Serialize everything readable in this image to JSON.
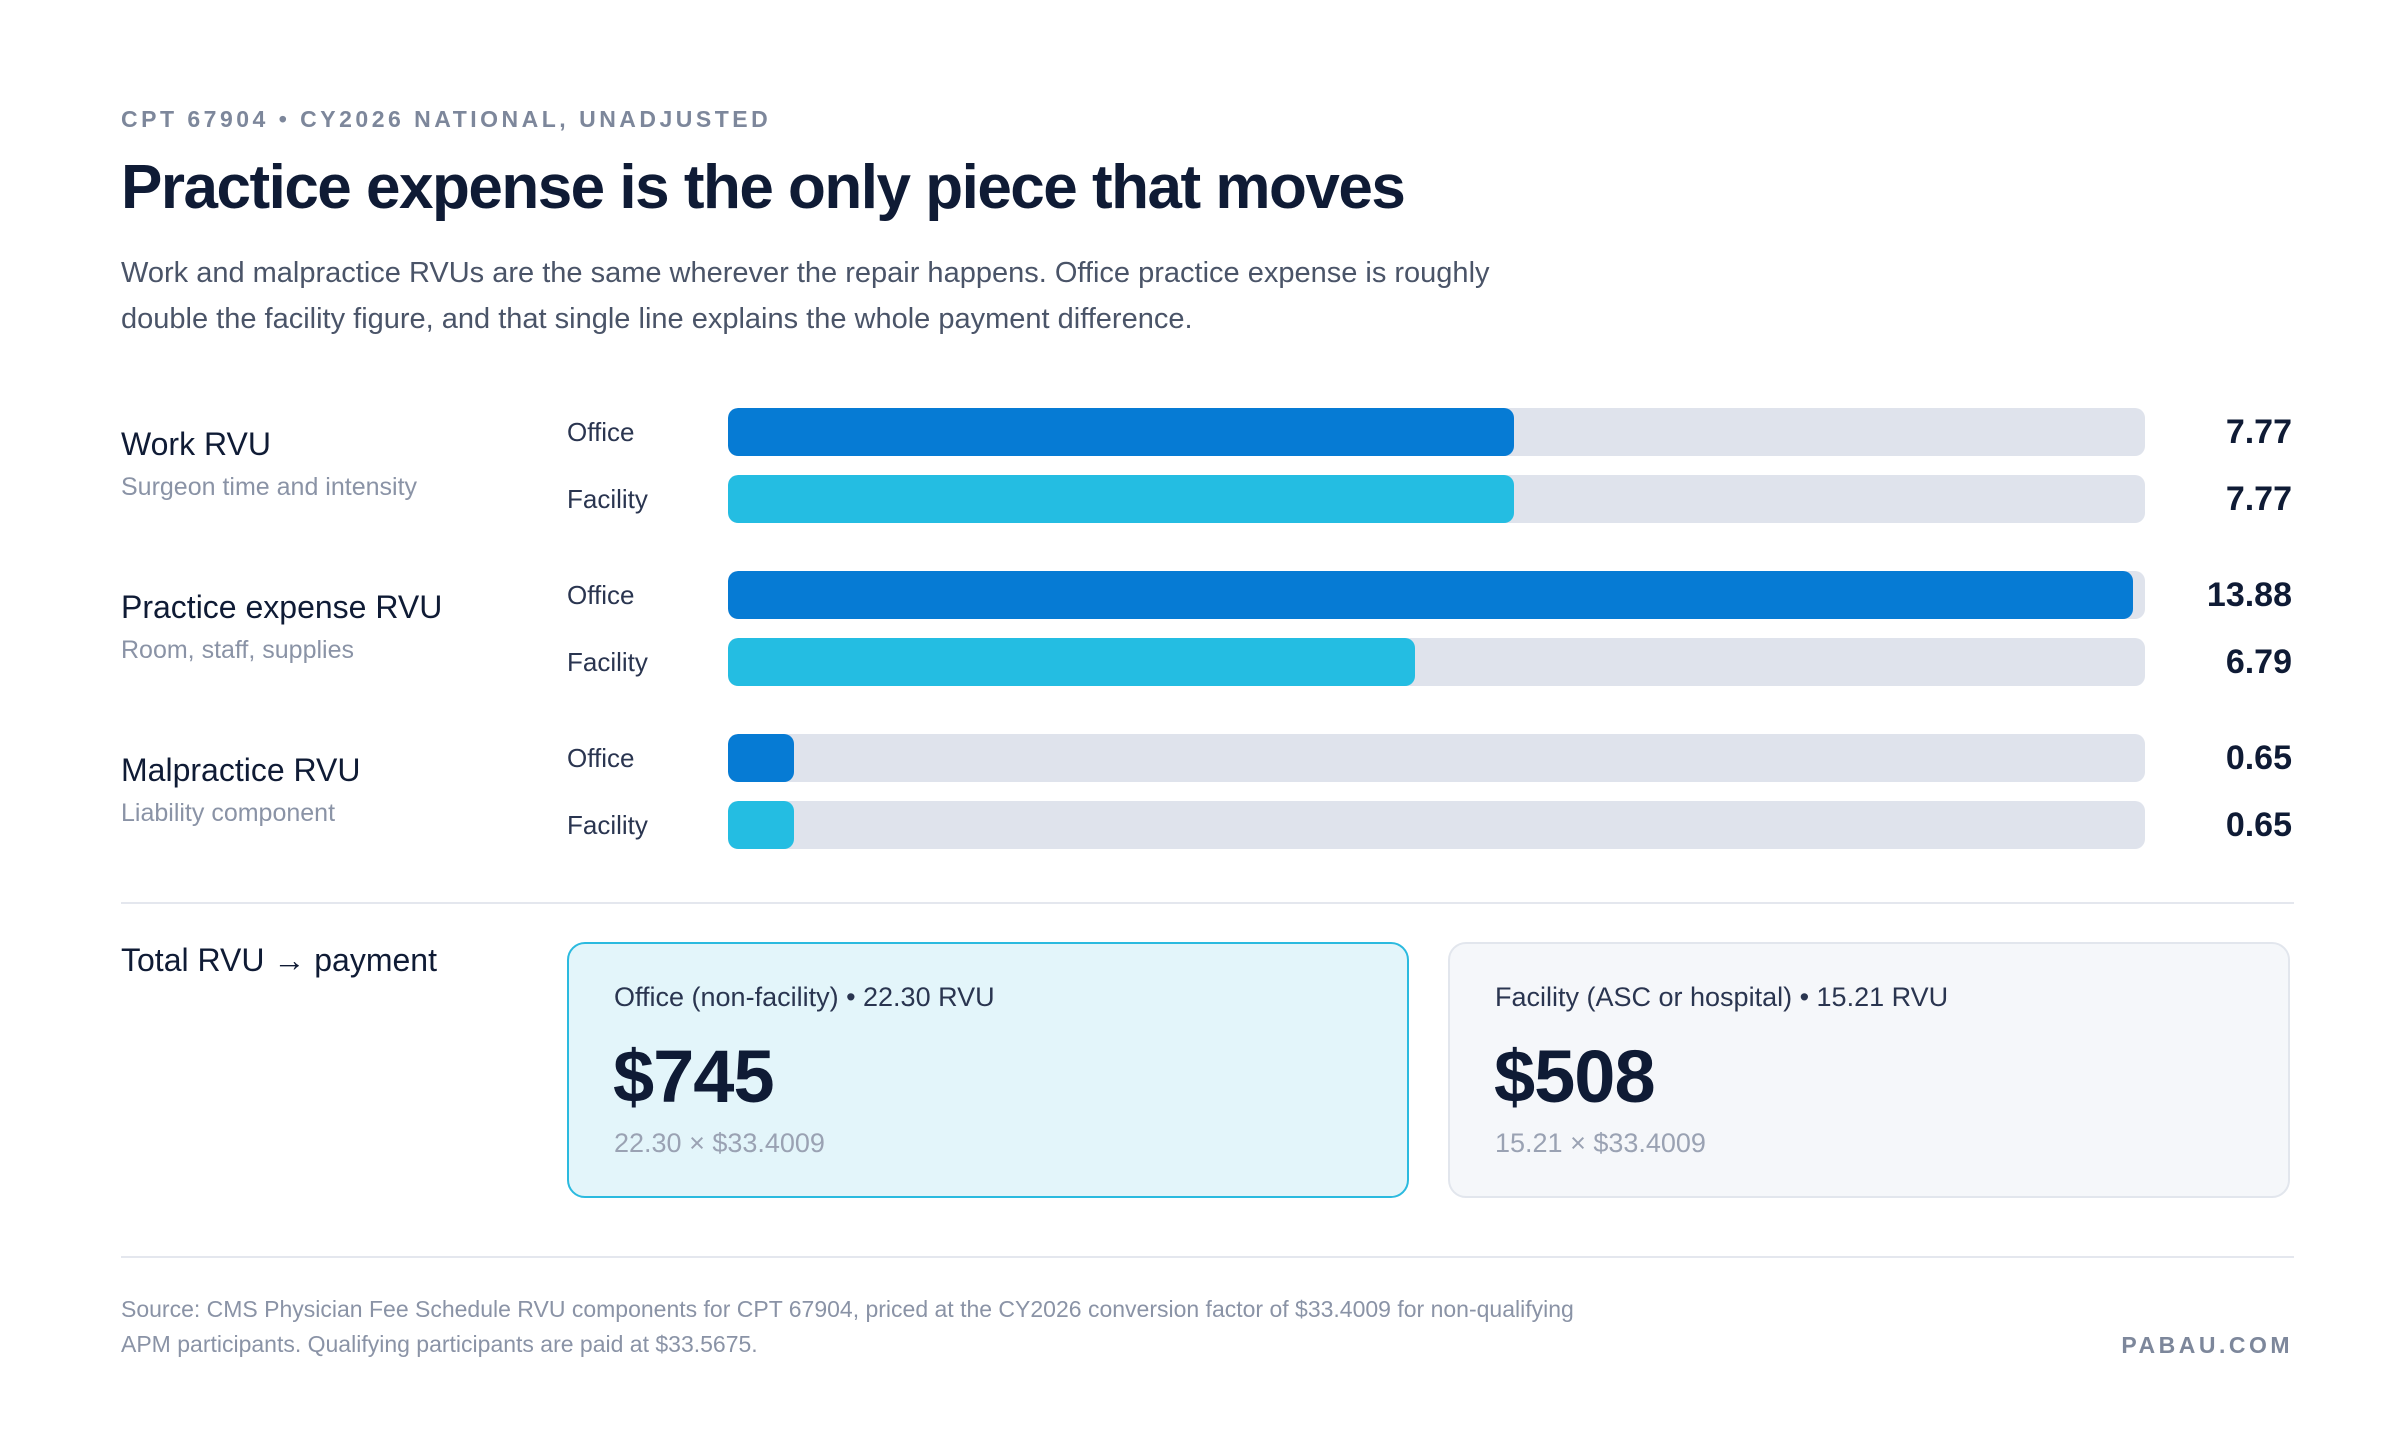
{
  "header": {
    "eyebrow": "CPT 67904 • CY2026 NATIONAL, UNADJUSTED",
    "title": "Practice expense is the only piece that moves",
    "subtitle": "Work and malpractice RVUs are the same wherever the repair happens. Office practice expense is roughly double the facility figure, and that single line explains the whole payment difference."
  },
  "colors": {
    "office": "#067bd4",
    "facility": "#24bde2",
    "track": "#dfe3ec",
    "office_card_bg": "#e3f5fa"
  },
  "chart_data": {
    "type": "bar",
    "orientation": "horizontal",
    "xlim": [
      0,
      14
    ],
    "grid": false,
    "legend": "none",
    "groups": [
      {
        "name": "Work RVU",
        "description": "Surgeon time and intensity",
        "bars": [
          {
            "label": "Office",
            "value": 7.77,
            "display": "7.77",
            "series": "office"
          },
          {
            "label": "Facility",
            "value": 7.77,
            "display": "7.77",
            "series": "facility"
          }
        ]
      },
      {
        "name": "Practice expense RVU",
        "description": "Room, staff, supplies",
        "bars": [
          {
            "label": "Office",
            "value": 13.88,
            "display": "13.88",
            "series": "office"
          },
          {
            "label": "Facility",
            "value": 6.79,
            "display": "6.79",
            "series": "facility"
          }
        ]
      },
      {
        "name": "Malpractice RVU",
        "description": "Liability component",
        "bars": [
          {
            "label": "Office",
            "value": 0.65,
            "display": "0.65",
            "series": "office"
          },
          {
            "label": "Facility",
            "value": 0.65,
            "display": "0.65",
            "series": "facility"
          }
        ]
      }
    ]
  },
  "totals": {
    "label": "Total RVU → payment",
    "office": {
      "heading": "Office (non-facility) • 22.30 RVU",
      "amount": "$745",
      "formula": "22.30 × $33.4009"
    },
    "facility": {
      "heading": "Facility (ASC or hospital) • 15.21 RVU",
      "amount": "$508",
      "formula": "15.21 × $33.4009"
    }
  },
  "footer": {
    "source": "Source: CMS Physician Fee Schedule RVU components for CPT 67904, priced at the CY2026 conversion factor of $33.4009 for non-qualifying APM participants. Qualifying participants are paid at $33.5675.",
    "brand": "PABAU.COM"
  }
}
